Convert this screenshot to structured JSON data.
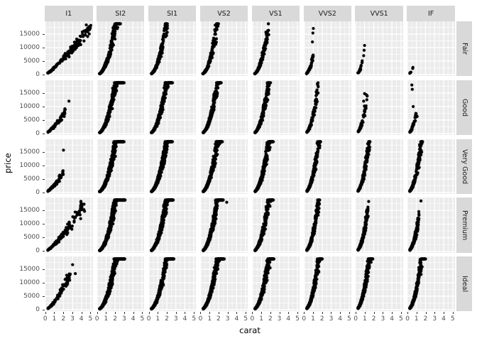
{
  "figure": {
    "xlabel": "carat",
    "ylabel": "price"
  },
  "colors": {
    "background": "#FFFFFF",
    "panel_bg": "#EBEBEB",
    "strip_bg": "#D9D9D9",
    "grid_line": "#FFFFFF",
    "point": "#000000",
    "tick_text": "#4D4D4D",
    "strip_text": "#1A1A1A",
    "axis_title_text": "#000000",
    "tick_mark": "#333333"
  },
  "chart_data": {
    "type": "scatter",
    "title": "",
    "xlabel": "carat",
    "ylabel": "price",
    "x_ticks": [
      0,
      1,
      2,
      3,
      4,
      5
    ],
    "y_ticks": [
      0,
      5000,
      10000,
      15000
    ],
    "x_minor": [
      0.5,
      1.5,
      2.5,
      3.5,
      4.5
    ],
    "y_minor": [
      2500,
      7500,
      12500,
      17500
    ],
    "x_domain": [
      -0.06,
      5.25
    ],
    "y_domain": [
      -600,
      19750
    ],
    "grid": "white major+minor gridlines on grey panel",
    "legend": "none",
    "facet_cols": {
      "variable": "clarity",
      "labels": [
        "I1",
        "SI2",
        "SI1",
        "VS2",
        "VS1",
        "VVS2",
        "VVS1",
        "IF"
      ]
    },
    "facet_rows": {
      "variable": "cut",
      "labels": [
        "Fair",
        "Good",
        "Very Good",
        "Premium",
        "Ideal"
      ]
    },
    "point_model_note": "Dense overplotted black points (diamonds: price vs carat). Per facet: n points, carat in [cmin,cmax] skewed low (u^skew), price = k*carat^pow * (1 +/- spread), clamped to [340,18820]; explicit outlier points [carat,price].",
    "facets": [
      {
        "row": "Fair",
        "col": "I1",
        "n": 170,
        "cmin": 0.3,
        "cmax": 5.0,
        "skew": 1.5,
        "k": 2500,
        "pow": 1.22,
        "spread": 0.22,
        "outliers": []
      },
      {
        "row": "Fair",
        "col": "SI2",
        "n": 400,
        "cmin": 0.3,
        "cmax": 2.6,
        "skew": 1.8,
        "k": 4160,
        "pow": 2.1,
        "spread": 0.3,
        "outliers": []
      },
      {
        "row": "Fair",
        "col": "SI1",
        "n": 300,
        "cmin": 0.3,
        "cmax": 2.1,
        "skew": 1.7,
        "k": 4620,
        "pow": 2.1,
        "spread": 0.3,
        "outliers": []
      },
      {
        "row": "Fair",
        "col": "VS2",
        "n": 250,
        "cmin": 0.25,
        "cmax": 2.0,
        "skew": 1.8,
        "k": 5180,
        "pow": 2.1,
        "spread": 0.32,
        "outliers": []
      },
      {
        "row": "Fair",
        "col": "VS1",
        "n": 180,
        "cmin": 0.25,
        "cmax": 1.8,
        "skew": 1.8,
        "k": 5470,
        "pow": 2.1,
        "spread": 0.32,
        "outliers": []
      },
      {
        "row": "Fair",
        "col": "VVS2",
        "n": 60,
        "cmin": 0.25,
        "cmax": 1.0,
        "skew": 1.5,
        "k": 7000,
        "pow": 2.1,
        "spread": 0.35,
        "outliers": [
          [
            0.9,
            12100
          ],
          [
            0.95,
            15400
          ],
          [
            1.0,
            17100
          ]
        ]
      },
      {
        "row": "Fair",
        "col": "VVS1",
        "n": 20,
        "cmin": 0.25,
        "cmax": 0.75,
        "skew": 1.5,
        "k": 8030,
        "pow": 2.1,
        "spread": 0.35,
        "outliers": [
          [
            0.9,
            7000
          ],
          [
            0.95,
            9000
          ],
          [
            1.0,
            10800
          ]
        ]
      },
      {
        "row": "Fair",
        "col": "IF",
        "n": 9,
        "cmin": 0.25,
        "cmax": 0.65,
        "skew": 1.2,
        "k": 7500,
        "pow": 2.1,
        "spread": 0.25,
        "outliers": []
      },
      {
        "row": "Good",
        "col": "I1",
        "n": 90,
        "cmin": 0.3,
        "cmax": 2.2,
        "skew": 1.4,
        "k": 2800,
        "pow": 1.35,
        "spread": 0.25,
        "outliers": [
          [
            2.6,
            12000
          ]
        ]
      },
      {
        "row": "Good",
        "col": "SI2",
        "n": 550,
        "cmin": 0.3,
        "cmax": 3.0,
        "skew": 1.9,
        "k": 4160,
        "pow": 2.1,
        "spread": 0.3,
        "outliers": []
      },
      {
        "row": "Good",
        "col": "SI1",
        "n": 550,
        "cmin": 0.3,
        "cmax": 2.6,
        "skew": 1.9,
        "k": 4620,
        "pow": 2.1,
        "spread": 0.3,
        "outliers": []
      },
      {
        "row": "Good",
        "col": "VS2",
        "n": 450,
        "cmin": 0.3,
        "cmax": 2.3,
        "skew": 1.9,
        "k": 5180,
        "pow": 2.1,
        "spread": 0.3,
        "outliers": []
      },
      {
        "row": "Good",
        "col": "VS1",
        "n": 350,
        "cmin": 0.3,
        "cmax": 2.0,
        "skew": 1.9,
        "k": 5470,
        "pow": 2.1,
        "spread": 0.32,
        "outliers": []
      },
      {
        "row": "Good",
        "col": "VVS2",
        "n": 160,
        "cmin": 0.3,
        "cmax": 1.6,
        "skew": 1.9,
        "k": 7000,
        "pow": 2.1,
        "spread": 0.32,
        "outliers": []
      },
      {
        "row": "Good",
        "col": "VVS1",
        "n": 70,
        "cmin": 0.3,
        "cmax": 1.3,
        "skew": 1.8,
        "k": 8030,
        "pow": 2.1,
        "spread": 0.35,
        "outliers": [
          [
            0.9,
            12000
          ],
          [
            1.0,
            14800
          ]
        ]
      },
      {
        "row": "Good",
        "col": "IF",
        "n": 50,
        "cmin": 0.3,
        "cmax": 1.1,
        "skew": 1.8,
        "k": 7500,
        "pow": 2.1,
        "spread": 0.35,
        "outliers": [
          [
            0.5,
            18000
          ],
          [
            0.55,
            16400
          ],
          [
            0.65,
            10000
          ]
        ]
      },
      {
        "row": "Very Good",
        "col": "I1",
        "n": 110,
        "cmin": 0.3,
        "cmax": 2.0,
        "skew": 1.4,
        "k": 2800,
        "pow": 1.35,
        "spread": 0.25,
        "outliers": [
          [
            2.0,
            15700
          ],
          [
            1.6,
            5300
          ]
        ]
      },
      {
        "row": "Very Good",
        "col": "SI2",
        "n": 700,
        "cmin": 0.3,
        "cmax": 3.0,
        "skew": 1.9,
        "k": 4160,
        "pow": 2.1,
        "spread": 0.3,
        "outliers": []
      },
      {
        "row": "Very Good",
        "col": "SI1",
        "n": 700,
        "cmin": 0.3,
        "cmax": 2.6,
        "skew": 1.9,
        "k": 4620,
        "pow": 2.1,
        "spread": 0.3,
        "outliers": []
      },
      {
        "row": "Very Good",
        "col": "VS2",
        "n": 600,
        "cmin": 0.3,
        "cmax": 2.4,
        "skew": 1.9,
        "k": 5180,
        "pow": 2.1,
        "spread": 0.3,
        "outliers": []
      },
      {
        "row": "Very Good",
        "col": "VS1",
        "n": 500,
        "cmin": 0.3,
        "cmax": 2.3,
        "skew": 1.9,
        "k": 5470,
        "pow": 2.1,
        "spread": 0.32,
        "outliers": []
      },
      {
        "row": "Very Good",
        "col": "VVS2",
        "n": 350,
        "cmin": 0.3,
        "cmax": 1.8,
        "skew": 1.9,
        "k": 7000,
        "pow": 2.1,
        "spread": 0.32,
        "outliers": []
      },
      {
        "row": "Very Good",
        "col": "VVS1",
        "n": 250,
        "cmin": 0.3,
        "cmax": 1.6,
        "skew": 1.9,
        "k": 8030,
        "pow": 2.1,
        "spread": 0.32,
        "outliers": []
      },
      {
        "row": "Very Good",
        "col": "IF",
        "n": 250,
        "cmin": 0.3,
        "cmax": 1.7,
        "skew": 2.0,
        "k": 7500,
        "pow": 2.1,
        "spread": 0.32,
        "outliers": []
      },
      {
        "row": "Premium",
        "col": "I1",
        "n": 140,
        "cmin": 0.3,
        "cmax": 4.3,
        "skew": 1.4,
        "k": 2600,
        "pow": 1.3,
        "spread": 0.25,
        "outliers": []
      },
      {
        "row": "Premium",
        "col": "SI2",
        "n": 700,
        "cmin": 0.3,
        "cmax": 3.1,
        "skew": 1.9,
        "k": 4160,
        "pow": 2.1,
        "spread": 0.3,
        "outliers": []
      },
      {
        "row": "Premium",
        "col": "SI1",
        "n": 700,
        "cmin": 0.3,
        "cmax": 2.7,
        "skew": 1.9,
        "k": 4620,
        "pow": 2.1,
        "spread": 0.3,
        "outliers": []
      },
      {
        "row": "Premium",
        "col": "VS2",
        "n": 600,
        "cmin": 0.3,
        "cmax": 2.5,
        "skew": 1.9,
        "k": 5180,
        "pow": 2.1,
        "spread": 0.3,
        "outliers": [
          [
            2.9,
            18000
          ]
        ]
      },
      {
        "row": "Premium",
        "col": "VS1",
        "n": 500,
        "cmin": 0.3,
        "cmax": 2.3,
        "skew": 1.9,
        "k": 5470,
        "pow": 2.1,
        "spread": 0.32,
        "outliers": []
      },
      {
        "row": "Premium",
        "col": "VVS2",
        "n": 350,
        "cmin": 0.3,
        "cmax": 1.7,
        "skew": 1.9,
        "k": 7000,
        "pow": 2.1,
        "spread": 0.32,
        "outliers": []
      },
      {
        "row": "Premium",
        "col": "VVS1",
        "n": 250,
        "cmin": 0.3,
        "cmax": 1.4,
        "skew": 1.9,
        "k": 8030,
        "pow": 2.1,
        "spread": 0.32,
        "outliers": [
          [
            1.45,
            18300
          ]
        ]
      },
      {
        "row": "Premium",
        "col": "IF",
        "n": 230,
        "cmin": 0.3,
        "cmax": 1.3,
        "skew": 1.9,
        "k": 7500,
        "pow": 2.1,
        "spread": 0.32,
        "outliers": [
          [
            1.5,
            18500
          ]
        ]
      },
      {
        "row": "Ideal",
        "col": "I1",
        "n": 100,
        "cmin": 0.3,
        "cmax": 2.7,
        "skew": 1.5,
        "k": 2900,
        "pow": 1.5,
        "spread": 0.25,
        "outliers": [
          [
            3.0,
            16700
          ],
          [
            2.75,
            13200
          ],
          [
            3.3,
            13400
          ]
        ]
      },
      {
        "row": "Ideal",
        "col": "SI2",
        "n": 700,
        "cmin": 0.3,
        "cmax": 3.1,
        "skew": 1.9,
        "k": 4160,
        "pow": 2.1,
        "spread": 0.3,
        "outliers": []
      },
      {
        "row": "Ideal",
        "col": "SI1",
        "n": 700,
        "cmin": 0.3,
        "cmax": 2.8,
        "skew": 1.9,
        "k": 4620,
        "pow": 2.1,
        "spread": 0.3,
        "outliers": []
      },
      {
        "row": "Ideal",
        "col": "VS2",
        "n": 700,
        "cmin": 0.3,
        "cmax": 2.6,
        "skew": 1.9,
        "k": 5180,
        "pow": 2.1,
        "spread": 0.3,
        "outliers": []
      },
      {
        "row": "Ideal",
        "col": "VS1",
        "n": 600,
        "cmin": 0.3,
        "cmax": 2.4,
        "skew": 1.9,
        "k": 5470,
        "pow": 2.1,
        "spread": 0.32,
        "outliers": []
      },
      {
        "row": "Ideal",
        "col": "VVS2",
        "n": 450,
        "cmin": 0.3,
        "cmax": 2.0,
        "skew": 1.9,
        "k": 7000,
        "pow": 2.1,
        "spread": 0.32,
        "outliers": []
      },
      {
        "row": "Ideal",
        "col": "VVS1",
        "n": 400,
        "cmin": 0.3,
        "cmax": 1.9,
        "skew": 1.9,
        "k": 8030,
        "pow": 2.1,
        "spread": 0.32,
        "outliers": []
      },
      {
        "row": "Ideal",
        "col": "IF",
        "n": 350,
        "cmin": 0.3,
        "cmax": 2.0,
        "skew": 2.0,
        "k": 7500,
        "pow": 2.1,
        "spread": 0.32,
        "outliers": []
      }
    ]
  }
}
